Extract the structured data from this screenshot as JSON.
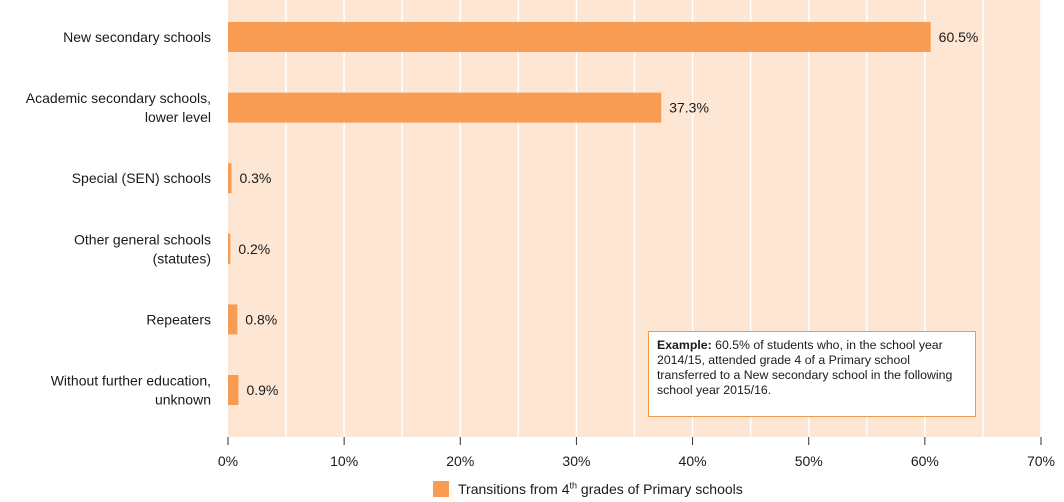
{
  "chart_data": {
    "type": "bar",
    "orientation": "horizontal",
    "categories": [
      [
        "New secondary schools"
      ],
      [
        "Academic secondary schools,",
        "lower level"
      ],
      [
        "Special (SEN) schools"
      ],
      [
        "Other general schools",
        "(statutes)"
      ],
      [
        "Repeaters"
      ],
      [
        "Without further education,",
        "unknown"
      ]
    ],
    "values": [
      60.5,
      37.3,
      0.3,
      0.2,
      0.8,
      0.9
    ],
    "data_labels": [
      "60.5%",
      "37.3%",
      "0.3%",
      "0.2%",
      "0.8%",
      "0.9%"
    ],
    "xlim": [
      0,
      70
    ],
    "x_ticks": [
      0,
      10,
      20,
      30,
      40,
      50,
      60,
      70
    ],
    "x_tick_labels": [
      "0%",
      "10%",
      "20%",
      "30%",
      "40%",
      "50%",
      "60%",
      "70%"
    ],
    "grid": "vertical",
    "legend": {
      "placement": "bottom-center",
      "name_before": "Transitions from 4",
      "name_sup": "th",
      "name_after": " grades of Primary schools"
    },
    "annotation": {
      "lead": "Example:",
      "text": " 60.5% of students who, in the school year 2014/15, attended grade 4 of a Primary school transferred to a New secondary school in the following school year 2015/16."
    }
  },
  "colors": {
    "bar": "#f79c52",
    "plot_background": "#fde6d4",
    "gridline": "#ffffff",
    "annotation_border": "#f29a4a"
  }
}
